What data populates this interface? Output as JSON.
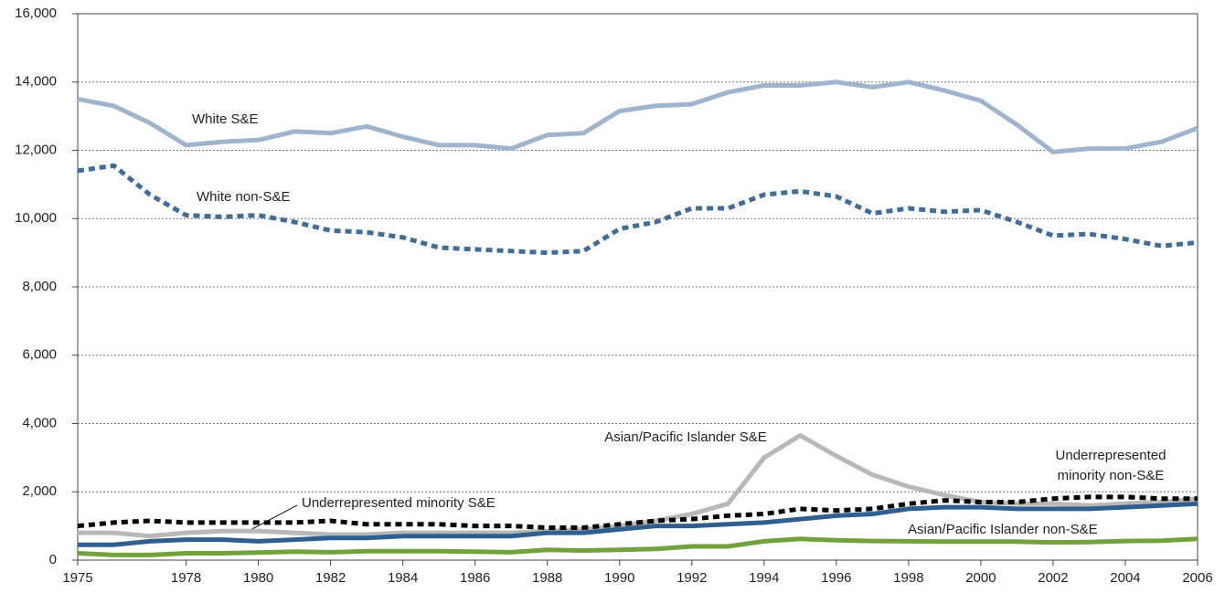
{
  "chart_data": {
    "type": "line",
    "x": [
      1975,
      1976,
      1977,
      1978,
      1979,
      1980,
      1981,
      1982,
      1983,
      1984,
      1985,
      1986,
      1987,
      1988,
      1989,
      1990,
      1991,
      1992,
      1993,
      1994,
      1995,
      1996,
      1997,
      1998,
      1999,
      2000,
      2001,
      2002,
      2003,
      2004,
      2005,
      2006
    ],
    "xlim": [
      1975,
      2006
    ],
    "xticks": [
      1975,
      1978,
      1980,
      1982,
      1984,
      1986,
      1988,
      1990,
      1992,
      1994,
      1996,
      1998,
      2000,
      2002,
      2004,
      2006
    ],
    "ylim": [
      0,
      16000
    ],
    "yticks": [
      0,
      {
        "value": 2000,
        "label": "2,000"
      },
      {
        "value": 4000,
        "label": "4,000"
      },
      {
        "value": 6000,
        "label": "6,000"
      },
      {
        "value": 8000,
        "label": "8,000"
      },
      {
        "value": 10000,
        "label": "10,000"
      },
      {
        "value": 12000,
        "label": "12,000"
      },
      {
        "value": 14000,
        "label": "14,000"
      },
      {
        "value": 16000,
        "label": "16,000"
      }
    ],
    "grid": true,
    "series": [
      {
        "name": "White S&E",
        "color": "#9fb4cd",
        "dashed": false,
        "values": [
          13500,
          13300,
          12800,
          12150,
          12250,
          12300,
          12550,
          12500,
          12700,
          12400,
          12150,
          12150,
          12050,
          12450,
          12500,
          13150,
          13300,
          13350,
          13700,
          13900,
          13900,
          14000,
          13850,
          14000,
          13750,
          13450,
          12750,
          11950,
          12050,
          12050,
          12250,
          12650
        ]
      },
      {
        "name": "White non-S&E",
        "color": "#3f6d9e",
        "dashed": true,
        "values": [
          11400,
          11550,
          10700,
          10100,
          10050,
          10100,
          9900,
          9650,
          9600,
          9450,
          9150,
          9100,
          9050,
          9000,
          9050,
          9700,
          9900,
          10300,
          10300,
          10700,
          10800,
          10650,
          10150,
          10300,
          10200,
          10250,
          9900,
          9500,
          9550,
          9400,
          9200,
          9300
        ]
      },
      {
        "name": "Asian/Pacific Islander S&E",
        "color": "#b8b8b8",
        "dashed": false,
        "values": [
          800,
          800,
          700,
          800,
          850,
          850,
          800,
          750,
          750,
          800,
          800,
          800,
          800,
          850,
          900,
          1000,
          1150,
          1350,
          1650,
          3000,
          3650,
          3050,
          2500,
          2150,
          1900,
          1700,
          1650,
          1650,
          1600,
          1650,
          1700,
          1800
        ]
      },
      {
        "name": "Underrepresented minority non-S&E",
        "color": "#000000",
        "dashed": true,
        "values": [
          1000,
          1100,
          1150,
          1100,
          1100,
          1100,
          1100,
          1150,
          1050,
          1050,
          1050,
          1000,
          1000,
          950,
          950,
          1050,
          1150,
          1200,
          1300,
          1350,
          1500,
          1450,
          1500,
          1650,
          1750,
          1700,
          1700,
          1800,
          1850,
          1850,
          1800,
          1800
        ]
      },
      {
        "name": "Underrepresented minority S&E",
        "color": "#2f5f8f",
        "dashed": false,
        "values": [
          450,
          450,
          550,
          600,
          600,
          550,
          600,
          650,
          650,
          700,
          700,
          700,
          700,
          800,
          800,
          900,
          1000,
          1000,
          1050,
          1100,
          1200,
          1300,
          1350,
          1500,
          1550,
          1550,
          1500,
          1500,
          1500,
          1550,
          1600,
          1650
        ]
      },
      {
        "name": "Asian/Pacific Islander non-S&E",
        "color": "#72a23b",
        "dashed": false,
        "values": [
          200,
          150,
          150,
          200,
          200,
          220,
          250,
          230,
          260,
          260,
          260,
          250,
          230,
          300,
          280,
          300,
          330,
          400,
          400,
          550,
          620,
          580,
          560,
          550,
          540,
          540,
          540,
          520,
          530,
          560,
          570,
          620
        ]
      }
    ]
  }
}
